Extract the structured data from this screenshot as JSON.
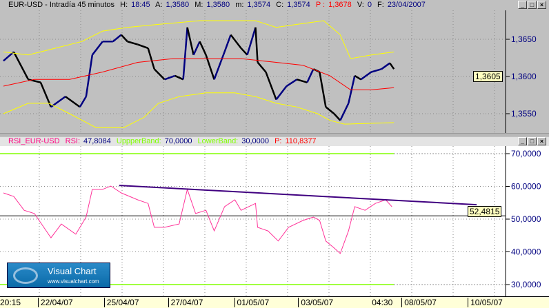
{
  "window": {
    "title": "EUR-USD - Intradía 45 minutos",
    "h_label": "H:",
    "h": "18:45",
    "a_label": "A:",
    "a": "1,3580",
    "m_label": "M:",
    "m": "1,3580",
    "mn_label": "m:",
    "mn": "1,3574",
    "c_label": "C:",
    "c": "1,3574",
    "p_label": "P :",
    "p": "1,3678",
    "v_label": "V:",
    "v": "0",
    "f_label": "F:",
    "f": "23/04/2007",
    "buttons": [
      "_",
      "□",
      "×"
    ]
  },
  "rsi_header": {
    "name": "RSI_EUR-USD",
    "rsi_label": "RSI:",
    "rsi": "47,8084",
    "upper_label": "UppperBand:",
    "upper": "70,0000",
    "lower_label": "LowerBand:",
    "lower": "30,0000",
    "p_label": "P:",
    "p": "110,8377"
  },
  "logo": {
    "title": "Visual Chart",
    "url": "www.visualchart.com"
  },
  "colors": {
    "price_up": "#000080",
    "price_down": "#000000",
    "bands": "#ffff00",
    "average": "#ff0000",
    "rsi": "#ff3399",
    "rsi_levels": "#80ff00",
    "trendline": "#400080"
  },
  "chart_data": [
    {
      "type": "line",
      "title": "EUR-USD - Intradía 45 minutos",
      "x_unit": "bar",
      "xlim": [
        0,
        243
      ],
      "ylim": [
        1.3525,
        1.368
      ],
      "yticks": [
        "1,3650",
        "1,3600",
        "1,3550"
      ],
      "ytick_values": [
        1.365,
        1.36,
        1.355
      ],
      "last_value_label": "1,3605",
      "last_value": 1.3605,
      "series": [
        {
          "role": "price",
          "x": [
            0,
            5,
            12,
            18,
            23,
            30,
            37,
            40,
            43,
            48,
            53,
            57,
            60,
            65,
            70,
            73,
            78,
            83,
            87,
            89,
            92,
            95,
            98,
            102,
            107,
            110,
            115,
            118,
            122,
            123,
            127,
            132,
            137,
            142,
            147,
            150,
            153,
            156,
            160,
            163,
            167,
            170,
            173,
            178,
            183,
            187,
            189
          ],
          "y": [
            1.3621,
            1.3633,
            1.3596,
            1.3592,
            1.3559,
            1.3573,
            1.3559,
            1.3573,
            1.3629,
            1.3647,
            1.3647,
            1.3656,
            1.3647,
            1.3643,
            1.3638,
            1.361,
            1.3596,
            1.3601,
            1.3596,
            1.3666,
            1.3629,
            1.3647,
            1.3629,
            1.3596,
            1.3633,
            1.3656,
            1.3638,
            1.3629,
            1.3666,
            1.3619,
            1.3606,
            1.3569,
            1.3587,
            1.3596,
            1.3592,
            1.361,
            1.3606,
            1.3559,
            1.355,
            1.3541,
            1.3564,
            1.3601,
            1.3596,
            1.3606,
            1.361,
            1.3618,
            1.361
          ]
        },
        {
          "role": "upper_band",
          "x": [
            0,
            12,
            25,
            38,
            48,
            60,
            75,
            95,
            110,
            122,
            132,
            142,
            155,
            163,
            168,
            178,
            189
          ],
          "y": [
            1.3633,
            1.3629,
            1.3638,
            1.3647,
            1.3661,
            1.3666,
            1.367,
            1.3675,
            1.3675,
            1.3675,
            1.3666,
            1.367,
            1.3675,
            1.3656,
            1.3624,
            1.3629,
            1.3633
          ]
        },
        {
          "role": "average",
          "x": [
            0,
            15,
            32,
            48,
            65,
            82,
            98,
            115,
            132,
            145,
            158,
            168,
            178,
            189
          ],
          "y": [
            1.3587,
            1.3596,
            1.3596,
            1.3606,
            1.3619,
            1.3624,
            1.3624,
            1.3624,
            1.3619,
            1.3615,
            1.3601,
            1.3582,
            1.3582,
            1.3585
          ]
        },
        {
          "role": "lower_band",
          "x": [
            0,
            12,
            22,
            32,
            45,
            58,
            68,
            75,
            85,
            98,
            112,
            122,
            132,
            142,
            152,
            158,
            165,
            189
          ],
          "y": [
            1.355,
            1.3564,
            1.3564,
            1.355,
            1.3531,
            1.3531,
            1.3545,
            1.3564,
            1.3573,
            1.3578,
            1.3578,
            1.3573,
            1.3564,
            1.3559,
            1.355,
            1.3541,
            1.3536,
            1.3538
          ]
        }
      ]
    },
    {
      "type": "line",
      "title": "RSI_EUR-USD",
      "x_unit": "bar",
      "xlim": [
        0,
        243
      ],
      "ylim": [
        27.5,
        72.5
      ],
      "yticks": [
        "70,0000",
        "60,0000",
        "50,0000",
        "40,0000",
        "30,0000"
      ],
      "ytick_values": [
        70,
        60,
        50,
        40,
        30
      ],
      "last_value_label": "52,4815",
      "last_value": 52.4815,
      "upper_band": 70,
      "lower_band": 30,
      "reference_level": 51,
      "trendline": {
        "x": [
          56,
          229
        ],
        "y": [
          60.3,
          54.4
        ]
      },
      "series": [
        {
          "role": "rsi",
          "x": [
            0,
            5,
            10,
            15,
            23,
            28,
            35,
            40,
            43,
            48,
            52,
            57,
            65,
            70,
            73,
            78,
            85,
            89,
            93,
            98,
            102,
            107,
            112,
            115,
            122,
            123,
            128,
            133,
            138,
            145,
            150,
            153,
            156,
            160,
            163,
            167,
            170,
            175,
            180,
            185,
            188
          ],
          "y": [
            58.0,
            56.9,
            52.7,
            51.7,
            44.3,
            48.5,
            45.4,
            50.6,
            59.1,
            59.1,
            60.1,
            58.0,
            55.9,
            54.8,
            47.5,
            47.5,
            48.5,
            59.1,
            51.7,
            52.7,
            46.4,
            53.8,
            55.9,
            52.7,
            54.8,
            47.5,
            46.4,
            43.3,
            47.5,
            49.6,
            50.6,
            49.6,
            43.3,
            41.2,
            39.5,
            46.4,
            53.8,
            52.7,
            54.8,
            55.9,
            53.8
          ]
        }
      ]
    }
  ],
  "x_axis": {
    "ticks": [
      {
        "label": "20:15",
        "x": 0
      },
      {
        "label": "22/04/07",
        "x": 16
      },
      {
        "label": "25/04/07",
        "x": 48
      },
      {
        "label": "27/04/07",
        "x": 79
      },
      {
        "label": "01/05/07",
        "x": 111
      },
      {
        "label": "03/05/07",
        "x": 142
      },
      {
        "label": "04:30",
        "x": 189
      },
      {
        "label": "08/05/07",
        "x": 192
      },
      {
        "label": "10/05/07",
        "x": 224
      }
    ]
  }
}
